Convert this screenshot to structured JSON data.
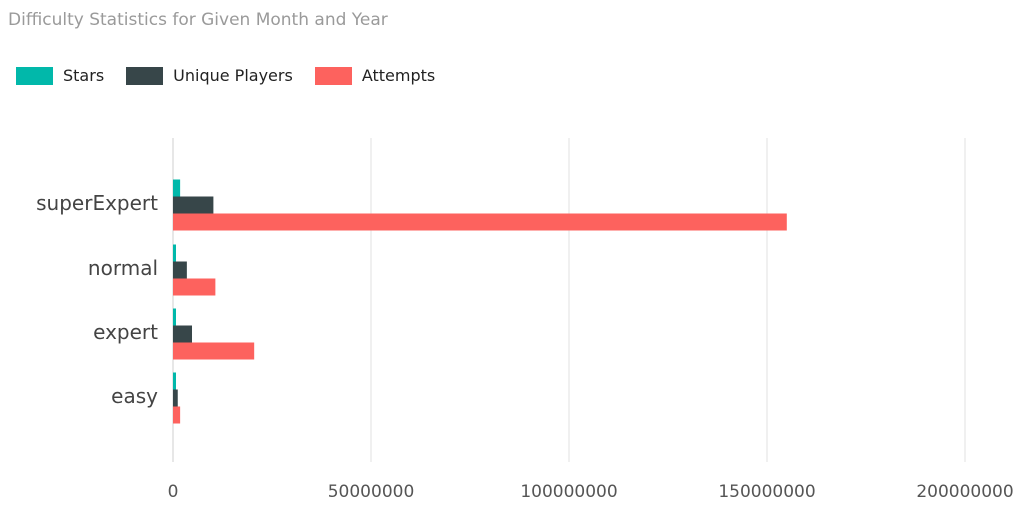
{
  "chart_data": {
    "type": "bar",
    "orientation": "horizontal",
    "title": "Difficulty Statistics for Given Month and Year",
    "categories": [
      "superExpert",
      "normal",
      "expert",
      "easy"
    ],
    "series": [
      {
        "name": "Stars",
        "color": "#01b8aa",
        "values": [
          1800000,
          700000,
          600000,
          700000
        ]
      },
      {
        "name": "Unique Players",
        "color": "#374649",
        "values": [
          10200000,
          3500000,
          4800000,
          1200000
        ]
      },
      {
        "name": "Attempts",
        "color": "#fd625e",
        "values": [
          155000000,
          10700000,
          20500000,
          1800000
        ]
      }
    ],
    "xlim": [
      0,
      200000000
    ],
    "xticks": [
      "0",
      "50000000",
      "100000000",
      "150000000",
      "200000000"
    ],
    "tick_values": [
      0,
      50000000,
      100000000,
      150000000,
      200000000
    ],
    "grid": true,
    "legend_position": "top-left"
  }
}
